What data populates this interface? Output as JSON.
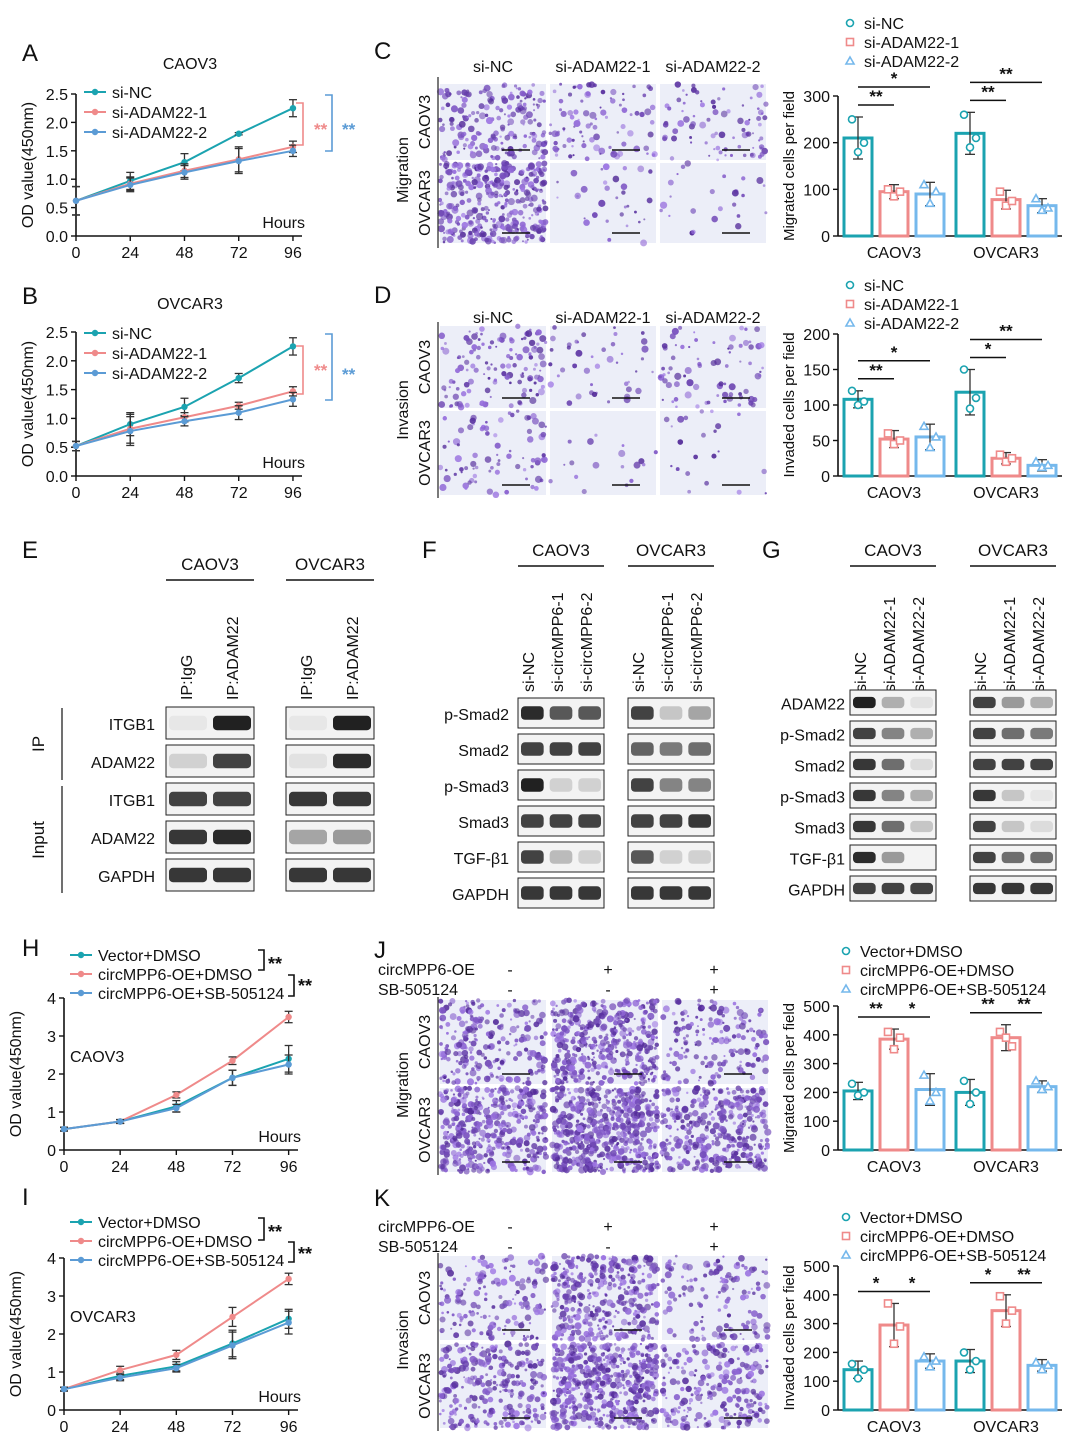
{
  "colors": {
    "teal": "#1ba3b0",
    "salmon": "#ef8a8a",
    "blue": "#5b9bd5",
    "lightblue": "#75b8ec",
    "stain": "#5e3f9f",
    "bg_field": "#e6e8f6"
  },
  "panels": {
    "A": {
      "letter": "A",
      "title": "CAOV3"
    },
    "B": {
      "letter": "B",
      "title": "OVCAR3"
    },
    "C": {
      "letter": "C"
    },
    "D": {
      "letter": "D"
    },
    "E": {
      "letter": "E"
    },
    "F": {
      "letter": "F"
    },
    "G": {
      "letter": "G"
    },
    "H": {
      "letter": "H"
    },
    "I": {
      "letter": "I"
    },
    "J": {
      "letter": "J"
    },
    "K": {
      "letter": "K"
    }
  },
  "growth_labels": {
    "xlabel": "Hours",
    "ylabel": "OD value(450nm)",
    "legend_ab": [
      "si-NC",
      "si-ADAM22-1",
      "si-ADAM22-2"
    ],
    "legend_hi": [
      "Vector+DMSO",
      "circMPP6-OE+DMSO",
      "circMPP6-OE+SB-505124"
    ],
    "sig": "**",
    "inner_H": "CAOV3",
    "inner_I": "OVCAR3"
  },
  "micro_labels": {
    "cols_cd": [
      "si-NC",
      "si-ADAM22-1",
      "si-ADAM22-2"
    ],
    "rows": [
      "CAOV3",
      "OVCAR3"
    ],
    "side_C": "Migration",
    "side_D": "Invasion",
    "treat_rows": [
      {
        "name": "circMPP6-OE",
        "vals": [
          "-",
          "+",
          "+"
        ]
      },
      {
        "name": "SB-505124",
        "vals": [
          "-",
          "-",
          "+"
        ]
      }
    ]
  },
  "blots": {
    "E": {
      "groups": [
        "CAOV3",
        "OVCAR3"
      ],
      "lanes": [
        "IP:IgG",
        "IP:ADAM22"
      ],
      "section_ip": "IP",
      "section_input": "Input",
      "rows": [
        "ITGB1",
        "ADAM22",
        "ITGB1",
        "ADAM22",
        "GAPDH"
      ]
    },
    "F": {
      "groups": [
        "CAOV3",
        "OVCAR3"
      ],
      "lanes": [
        "si-NC",
        "si-circMPP6-1",
        "si-circMPP6-2"
      ],
      "rows": [
        "p-Smad2",
        "Smad2",
        "p-Smad3",
        "Smad3",
        "TGF-β1",
        "GAPDH"
      ]
    },
    "G": {
      "groups": [
        "CAOV3",
        "OVCAR3"
      ],
      "lanes": [
        "si-NC",
        "si-ADAM22-1",
        "si-ADAM22-2"
      ],
      "rows": [
        "ADAM22",
        "p-Smad2",
        "Smad2",
        "p-Smad3",
        "Smad3",
        "TGF-β1",
        "GAPDH"
      ]
    }
  },
  "chart_data": [
    {
      "id": "A",
      "type": "line",
      "title": "CAOV3",
      "xlabel": "Hours",
      "ylabel": "OD value(450nm)",
      "x": [
        0,
        24,
        48,
        72,
        96
      ],
      "xlim": [
        0,
        100
      ],
      "ylim": [
        0,
        2.5
      ],
      "yticks": [
        0.0,
        0.5,
        1.0,
        1.5,
        2.0,
        2.5
      ],
      "series": [
        {
          "name": "si-NC",
          "values": [
            0.62,
            0.97,
            1.3,
            1.8,
            2.25
          ],
          "err": [
            0.25,
            0.15,
            0.15,
            0.02,
            0.15
          ]
        },
        {
          "name": "si-ADAM22-1",
          "values": [
            0.62,
            0.92,
            1.15,
            1.35,
            1.57
          ],
          "err": [
            0.25,
            0.12,
            0.12,
            0.22,
            0.1
          ]
        },
        {
          "name": "si-ADAM22-2",
          "values": [
            0.62,
            0.9,
            1.12,
            1.32,
            1.5
          ],
          "err": [
            0.25,
            0.12,
            0.12,
            0.22,
            0.1
          ]
        }
      ],
      "significance": [
        "**",
        "**"
      ]
    },
    {
      "id": "B",
      "type": "line",
      "title": "OVCAR3",
      "xlabel": "Hours",
      "ylabel": "OD value(450nm)",
      "x": [
        0,
        24,
        48,
        72,
        96
      ],
      "xlim": [
        0,
        100
      ],
      "ylim": [
        0,
        2.5
      ],
      "yticks": [
        0.0,
        0.5,
        1.0,
        1.5,
        2.0,
        2.5
      ],
      "series": [
        {
          "name": "si-NC",
          "values": [
            0.52,
            0.9,
            1.2,
            1.7,
            2.25
          ],
          "err": [
            0.08,
            0.2,
            0.15,
            0.08,
            0.15
          ]
        },
        {
          "name": "si-ADAM22-1",
          "values": [
            0.52,
            0.82,
            1.02,
            1.22,
            1.47
          ],
          "err": [
            0.08,
            0.25,
            0.08,
            0.06,
            0.08
          ]
        },
        {
          "name": "si-ADAM22-2",
          "values": [
            0.52,
            0.78,
            0.95,
            1.1,
            1.33
          ],
          "err": [
            0.08,
            0.25,
            0.08,
            0.12,
            0.12
          ]
        }
      ],
      "significance": [
        "**",
        "**"
      ]
    },
    {
      "id": "C",
      "type": "bar",
      "ylabel": "Migrated cells per field",
      "categories": [
        "CAOV3",
        "OVCAR3"
      ],
      "ylim": [
        0,
        300
      ],
      "yticks": [
        0,
        100,
        200,
        300
      ],
      "series": [
        {
          "name": "si-NC",
          "values": [
            210,
            220
          ],
          "err": [
            45,
            45
          ],
          "points": [
            [
              250,
              180,
              200
            ],
            [
              260,
              190,
              210
            ]
          ]
        },
        {
          "name": "si-ADAM22-1",
          "values": [
            95,
            78
          ],
          "err": [
            15,
            20
          ],
          "points": [
            [
              100,
              85,
              95
            ],
            [
              95,
              65,
              75
            ]
          ]
        },
        {
          "name": "si-ADAM22-2",
          "values": [
            90,
            65
          ],
          "err": [
            25,
            15
          ],
          "points": [
            [
              110,
              70,
              95
            ],
            [
              80,
              55,
              60
            ]
          ]
        }
      ],
      "comparisons": [
        [
          "**",
          "*"
        ],
        [
          "**",
          "**"
        ]
      ]
    },
    {
      "id": "D",
      "type": "bar",
      "ylabel": "Invaded cells per field",
      "categories": [
        "CAOV3",
        "OVCAR3"
      ],
      "ylim": [
        0,
        200
      ],
      "yticks": [
        0,
        50,
        100,
        150,
        200
      ],
      "series": [
        {
          "name": "si-NC",
          "values": [
            108,
            118
          ],
          "err": [
            12,
            32
          ],
          "points": [
            [
              120,
              100,
              105
            ],
            [
              150,
              95,
              110
            ]
          ]
        },
        {
          "name": "si-ADAM22-1",
          "values": [
            52,
            25
          ],
          "err": [
            12,
            8
          ],
          "points": [
            [
              60,
              45,
              50
            ],
            [
              30,
              20,
              25
            ]
          ]
        },
        {
          "name": "si-ADAM22-2",
          "values": [
            55,
            15
          ],
          "err": [
            18,
            8
          ],
          "points": [
            [
              70,
              40,
              55
            ],
            [
              20,
              12,
              15
            ]
          ]
        }
      ],
      "comparisons": [
        [
          "**",
          "*"
        ],
        [
          "*",
          "**"
        ]
      ]
    },
    {
      "id": "H",
      "type": "line",
      "ylabel": "OD value(450nm)",
      "xlabel": "Hours",
      "x": [
        0,
        24,
        48,
        72,
        96
      ],
      "ylim": [
        0,
        4
      ],
      "yticks": [
        0,
        1,
        2,
        3,
        4
      ],
      "series": [
        {
          "name": "Vector+DMSO",
          "values": [
            0.55,
            0.75,
            1.15,
            1.9,
            2.4
          ],
          "err": [
            0.05,
            0.05,
            0.15,
            0.2,
            0.35
          ]
        },
        {
          "name": "circMPP6-OE+DMSO",
          "values": [
            0.55,
            0.75,
            1.45,
            2.35,
            3.5
          ],
          "err": [
            0.05,
            0.05,
            0.08,
            0.1,
            0.15
          ]
        },
        {
          "name": "circMPP6-OE+SB-505124",
          "values": [
            0.55,
            0.75,
            1.1,
            1.9,
            2.25
          ],
          "err": [
            0.05,
            0.05,
            0.1,
            0.2,
            0.25
          ]
        }
      ],
      "significance": [
        "**",
        "**"
      ]
    },
    {
      "id": "I",
      "type": "line",
      "ylabel": "OD value(450nm)",
      "xlabel": "Hours",
      "x": [
        0,
        24,
        48,
        72,
        96
      ],
      "ylim": [
        0,
        4
      ],
      "yticks": [
        0,
        1,
        2,
        3,
        4
      ],
      "series": [
        {
          "name": "Vector+DMSO",
          "values": [
            0.55,
            0.9,
            1.15,
            1.75,
            2.4
          ],
          "err": [
            0.05,
            0.1,
            0.12,
            0.35,
            0.25
          ]
        },
        {
          "name": "circMPP6-OE+DMSO",
          "values": [
            0.55,
            1.05,
            1.45,
            2.45,
            3.45
          ],
          "err": [
            0.05,
            0.1,
            0.12,
            0.25,
            0.15
          ]
        },
        {
          "name": "circMPP6-OE+SB-505124",
          "values": [
            0.55,
            0.85,
            1.1,
            1.7,
            2.3
          ],
          "err": [
            0.05,
            0.08,
            0.1,
            0.35,
            0.3
          ]
        }
      ],
      "significance": [
        "**",
        "**"
      ]
    },
    {
      "id": "J",
      "type": "bar",
      "ylabel": "Migrated cells per field",
      "categories": [
        "CAOV3",
        "OVCAR3"
      ],
      "ylim": [
        0,
        500
      ],
      "yticks": [
        0,
        100,
        200,
        300,
        400,
        500
      ],
      "series": [
        {
          "name": "Vector+DMSO",
          "values": [
            205,
            200
          ],
          "err": [
            30,
            45
          ],
          "points": [
            [
              230,
              190,
              200
            ],
            [
              240,
              160,
              200
            ]
          ]
        },
        {
          "name": "circMPP6-OE+DMSO",
          "values": [
            385,
            390
          ],
          "err": [
            35,
            45
          ],
          "points": [
            [
              410,
              350,
              390
            ],
            [
              410,
              390,
              360
            ]
          ]
        },
        {
          "name": "circMPP6-OE+SB-505124",
          "values": [
            210,
            220
          ],
          "err": [
            55,
            20
          ],
          "points": [
            [
              260,
              170,
              200
            ],
            [
              240,
              210,
              220
            ]
          ]
        }
      ],
      "comparisons": [
        [
          "**",
          "*"
        ],
        [
          "**",
          "**"
        ]
      ]
    },
    {
      "id": "K",
      "type": "bar",
      "ylabel": "Invaded cells per field",
      "categories": [
        "CAOV3",
        "OVCAR3"
      ],
      "ylim": [
        0,
        500
      ],
      "yticks": [
        0,
        100,
        200,
        300,
        400,
        500
      ],
      "series": [
        {
          "name": "Vector+DMSO",
          "values": [
            140,
            170
          ],
          "err": [
            30,
            40
          ],
          "points": [
            [
              160,
              110,
              140
            ],
            [
              200,
              140,
              170
            ]
          ]
        },
        {
          "name": "circMPP6-OE+DMSO",
          "values": [
            295,
            345
          ],
          "err": [
            75,
            55
          ],
          "points": [
            [
              370,
              230,
              290
            ],
            [
              395,
              300,
              345
            ]
          ]
        },
        {
          "name": "circMPP6-OE+SB-505124",
          "values": [
            170,
            155
          ],
          "err": [
            25,
            20
          ],
          "points": [
            [
              185,
              150,
              170
            ],
            [
              165,
              140,
              155
            ]
          ]
        }
      ],
      "comparisons": [
        [
          "*",
          "*"
        ],
        [
          "*",
          "**"
        ]
      ]
    }
  ]
}
